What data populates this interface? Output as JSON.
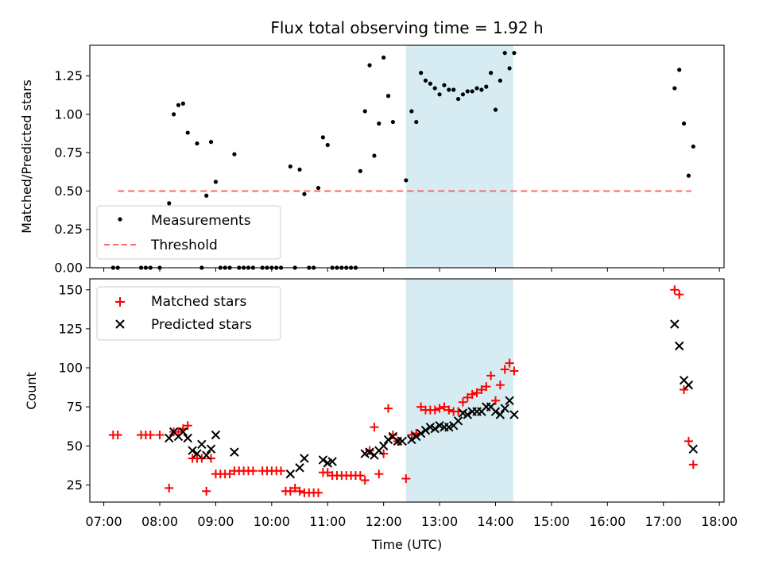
{
  "chart_data": [
    {
      "type": "scatter",
      "title": "Flux total observing time = 1.92 h",
      "xlabel": "",
      "ylabel": "Matched/Predicted stars",
      "xlim": [
        "06:45",
        "18:05"
      ],
      "ylim": [
        0,
        1.45
      ],
      "yticks": [
        "0.00",
        "0.25",
        "0.50",
        "0.75",
        "1.00",
        "1.25"
      ],
      "highlight_span": {
        "x_start": "12:24",
        "x_end": "14:19",
        "color": "#add8e6"
      },
      "legend": {
        "placement": "lower-left",
        "entries": [
          "Measurements",
          "Threshold"
        ]
      },
      "series": [
        {
          "name": "Measurements",
          "color": "#000000",
          "marker": "dot",
          "points": [
            [
              "07:10",
              0
            ],
            [
              "07:15",
              0
            ],
            [
              "07:40",
              0
            ],
            [
              "07:45",
              0
            ],
            [
              "07:50",
              0
            ],
            [
              "08:00",
              0
            ],
            [
              "08:10",
              0.42
            ],
            [
              "08:15",
              1.0
            ],
            [
              "08:20",
              1.06
            ],
            [
              "08:25",
              1.07
            ],
            [
              "08:30",
              0.88
            ],
            [
              "08:40",
              0.81
            ],
            [
              "08:45",
              0
            ],
            [
              "08:50",
              0.47
            ],
            [
              "08:55",
              0.82
            ],
            [
              "09:00",
              0.56
            ],
            [
              "09:05",
              0
            ],
            [
              "09:10",
              0
            ],
            [
              "09:15",
              0
            ],
            [
              "09:20",
              0.74
            ],
            [
              "09:25",
              0
            ],
            [
              "09:30",
              0
            ],
            [
              "09:35",
              0
            ],
            [
              "09:40",
              0
            ],
            [
              "09:50",
              0
            ],
            [
              "09:55",
              0
            ],
            [
              "10:00",
              0
            ],
            [
              "10:05",
              0
            ],
            [
              "10:10",
              0
            ],
            [
              "10:20",
              0.66
            ],
            [
              "10:25",
              0
            ],
            [
              "10:30",
              0.64
            ],
            [
              "10:35",
              0.48
            ],
            [
              "10:40",
              0
            ],
            [
              "10:45",
              0
            ],
            [
              "10:50",
              0.52
            ],
            [
              "10:55",
              0.85
            ],
            [
              "11:00",
              0.8
            ],
            [
              "11:05",
              0
            ],
            [
              "11:10",
              0
            ],
            [
              "11:15",
              0
            ],
            [
              "11:20",
              0
            ],
            [
              "11:25",
              0
            ],
            [
              "11:30",
              0
            ],
            [
              "11:35",
              0.63
            ],
            [
              "11:40",
              1.02
            ],
            [
              "11:45",
              1.32
            ],
            [
              "11:50",
              0.73
            ],
            [
              "11:55",
              0.94
            ],
            [
              "12:00",
              1.37
            ],
            [
              "12:05",
              1.12
            ],
            [
              "12:10",
              0.95
            ],
            [
              "12:24",
              0.57
            ],
            [
              "12:30",
              1.02
            ],
            [
              "12:35",
              0.95
            ],
            [
              "12:40",
              1.27
            ],
            [
              "12:45",
              1.22
            ],
            [
              "12:50",
              1.2
            ],
            [
              "12:55",
              1.17
            ],
            [
              "13:00",
              1.13
            ],
            [
              "13:05",
              1.19
            ],
            [
              "13:10",
              1.16
            ],
            [
              "13:15",
              1.16
            ],
            [
              "13:20",
              1.1
            ],
            [
              "13:25",
              1.13
            ],
            [
              "13:30",
              1.15
            ],
            [
              "13:35",
              1.15
            ],
            [
              "13:40",
              1.17
            ],
            [
              "13:45",
              1.16
            ],
            [
              "13:50",
              1.18
            ],
            [
              "13:55",
              1.27
            ],
            [
              "14:00",
              1.03
            ],
            [
              "14:05",
              1.22
            ],
            [
              "14:10",
              1.4
            ],
            [
              "14:15",
              1.3
            ],
            [
              "14:20",
              1.4
            ],
            [
              "17:12",
              1.17
            ],
            [
              "17:17",
              1.29
            ],
            [
              "17:22",
              0.94
            ],
            [
              "17:27",
              0.6
            ],
            [
              "17:32",
              0.79
            ]
          ]
        },
        {
          "name": "Threshold",
          "color": "#ff6666",
          "style": "dashed",
          "points": [
            [
              "07:15",
              0.5
            ],
            [
              "17:30",
              0.5
            ]
          ]
        }
      ]
    },
    {
      "type": "scatter",
      "title": "",
      "xlabel": "Time (UTC)",
      "ylabel": "Count",
      "xlim": [
        "06:45",
        "18:05"
      ],
      "ylim": [
        14,
        157
      ],
      "yticks": [
        "25",
        "50",
        "75",
        "100",
        "125",
        "150"
      ],
      "xticks": [
        "07:00",
        "08:00",
        "09:00",
        "10:00",
        "11:00",
        "12:00",
        "13:00",
        "14:00",
        "15:00",
        "16:00",
        "17:00",
        "18:00"
      ],
      "highlight_span": {
        "x_start": "12:24",
        "x_end": "14:19",
        "color": "#add8e6"
      },
      "legend": {
        "placement": "upper-left",
        "entries": [
          "Matched stars",
          "Predicted stars"
        ]
      },
      "series": [
        {
          "name": "Matched stars",
          "color": "#ff0000",
          "marker": "plus",
          "points": [
            [
              "07:10",
              57
            ],
            [
              "07:15",
              57
            ],
            [
              "07:40",
              57
            ],
            [
              "07:45",
              57
            ],
            [
              "07:50",
              57
            ],
            [
              "08:00",
              57
            ],
            [
              "08:10",
              23
            ],
            [
              "08:15",
              59
            ],
            [
              "08:20",
              59
            ],
            [
              "08:25",
              61
            ],
            [
              "08:30",
              63
            ],
            [
              "08:35",
              42
            ],
            [
              "08:40",
              42
            ],
            [
              "08:45",
              42
            ],
            [
              "08:50",
              21
            ],
            [
              "08:55",
              42
            ],
            [
              "09:00",
              32
            ],
            [
              "09:05",
              32
            ],
            [
              "09:10",
              32
            ],
            [
              "09:15",
              32
            ],
            [
              "09:20",
              34
            ],
            [
              "09:25",
              34
            ],
            [
              "09:30",
              34
            ],
            [
              "09:35",
              34
            ],
            [
              "09:40",
              34
            ],
            [
              "09:50",
              34
            ],
            [
              "09:55",
              34
            ],
            [
              "10:00",
              34
            ],
            [
              "10:05",
              34
            ],
            [
              "10:10",
              34
            ],
            [
              "10:15",
              21
            ],
            [
              "10:20",
              21
            ],
            [
              "10:25",
              23
            ],
            [
              "10:30",
              21
            ],
            [
              "10:35",
              20
            ],
            [
              "10:40",
              20
            ],
            [
              "10:45",
              20
            ],
            [
              "10:50",
              20
            ],
            [
              "10:55",
              33
            ],
            [
              "11:00",
              33
            ],
            [
              "11:05",
              31
            ],
            [
              "11:10",
              31
            ],
            [
              "11:15",
              31
            ],
            [
              "11:20",
              31
            ],
            [
              "11:25",
              31
            ],
            [
              "11:30",
              31
            ],
            [
              "11:35",
              31
            ],
            [
              "11:40",
              28
            ],
            [
              "11:45",
              47
            ],
            [
              "11:50",
              62
            ],
            [
              "11:55",
              32
            ],
            [
              "12:00",
              45
            ],
            [
              "12:05",
              74
            ],
            [
              "12:10",
              57
            ],
            [
              "12:15",
              53
            ],
            [
              "12:24",
              29
            ],
            [
              "12:30",
              57
            ],
            [
              "12:35",
              58
            ],
            [
              "12:40",
              75
            ],
            [
              "12:45",
              73
            ],
            [
              "12:50",
              73
            ],
            [
              "12:55",
              73
            ],
            [
              "13:00",
              74
            ],
            [
              "13:05",
              75
            ],
            [
              "13:10",
              73
            ],
            [
              "13:15",
              72
            ],
            [
              "13:20",
              72
            ],
            [
              "13:25",
              78
            ],
            [
              "13:30",
              81
            ],
            [
              "13:35",
              83
            ],
            [
              "13:40",
              84
            ],
            [
              "13:45",
              86
            ],
            [
              "13:50",
              88
            ],
            [
              "13:55",
              95
            ],
            [
              "14:00",
              79
            ],
            [
              "14:05",
              89
            ],
            [
              "14:10",
              99
            ],
            [
              "14:15",
              103
            ],
            [
              "14:20",
              98
            ],
            [
              "17:12",
              150
            ],
            [
              "17:17",
              147
            ],
            [
              "17:22",
              86
            ],
            [
              "17:27",
              53
            ],
            [
              "17:32",
              38
            ]
          ]
        },
        {
          "name": "Predicted stars",
          "color": "#000000",
          "marker": "cross",
          "points": [
            [
              "08:10",
              55
            ],
            [
              "08:15",
              59
            ],
            [
              "08:20",
              56
            ],
            [
              "08:25",
              59
            ],
            [
              "08:30",
              55
            ],
            [
              "08:35",
              47
            ],
            [
              "08:40",
              45
            ],
            [
              "08:45",
              51
            ],
            [
              "08:50",
              44
            ],
            [
              "08:55",
              48
            ],
            [
              "09:00",
              57
            ],
            [
              "09:20",
              46
            ],
            [
              "10:20",
              32
            ],
            [
              "10:30",
              36
            ],
            [
              "10:35",
              42
            ],
            [
              "10:55",
              41
            ],
            [
              "11:00",
              39
            ],
            [
              "11:05",
              40
            ],
            [
              "11:40",
              45
            ],
            [
              "11:45",
              46
            ],
            [
              "11:50",
              44
            ],
            [
              "11:55",
              47
            ],
            [
              "12:00",
              50
            ],
            [
              "12:05",
              54
            ],
            [
              "12:10",
              56
            ],
            [
              "12:15",
              53
            ],
            [
              "12:20",
              53
            ],
            [
              "12:30",
              54
            ],
            [
              "12:35",
              56
            ],
            [
              "12:40",
              58
            ],
            [
              "12:45",
              60
            ],
            [
              "12:50",
              62
            ],
            [
              "12:55",
              61
            ],
            [
              "13:00",
              63
            ],
            [
              "13:05",
              62
            ],
            [
              "13:10",
              62
            ],
            [
              "13:15",
              63
            ],
            [
              "13:20",
              66
            ],
            [
              "13:25",
              71
            ],
            [
              "13:30",
              70
            ],
            [
              "13:35",
              72
            ],
            [
              "13:40",
              72
            ],
            [
              "13:45",
              72
            ],
            [
              "13:50",
              75
            ],
            [
              "13:55",
              75
            ],
            [
              "14:00",
              72
            ],
            [
              "14:05",
              70
            ],
            [
              "14:10",
              74
            ],
            [
              "14:15",
              79
            ],
            [
              "14:20",
              70
            ],
            [
              "17:12",
              128
            ],
            [
              "17:17",
              114
            ],
            [
              "17:22",
              92
            ],
            [
              "17:27",
              89
            ],
            [
              "17:32",
              48
            ]
          ]
        }
      ]
    }
  ]
}
